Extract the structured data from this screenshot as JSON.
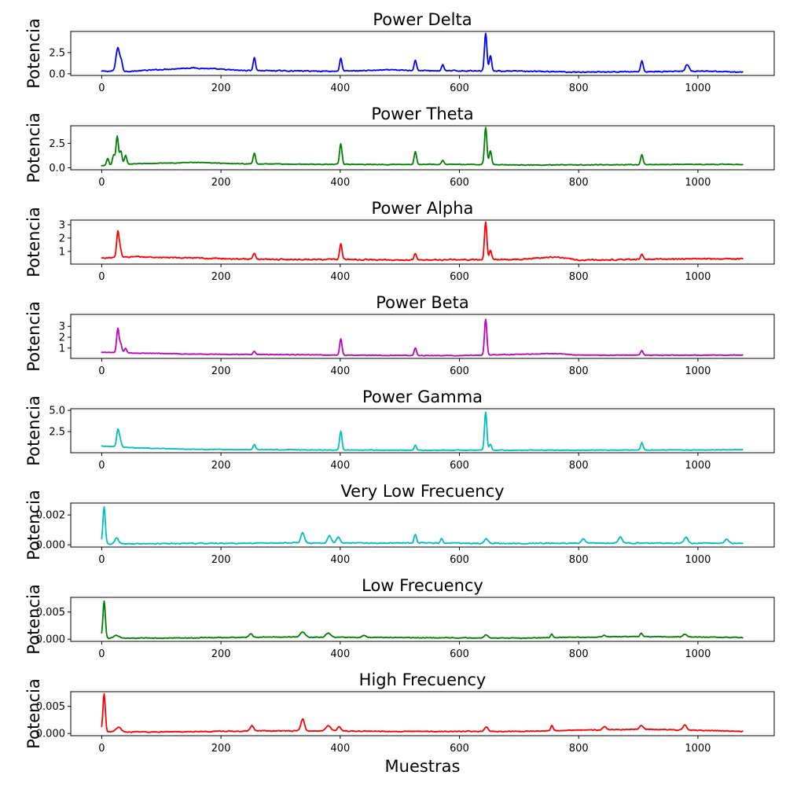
{
  "chart_data": [
    {
      "type": "line",
      "title": "Power Delta",
      "ylabel": "Potencia",
      "xlabel": "",
      "color": "#0000ff",
      "xlim": [
        -52,
        1128
      ],
      "ylim": [
        -0.2,
        5.0
      ],
      "xticks": [
        0,
        200,
        400,
        600,
        800,
        1000
      ],
      "yticks": [
        0.0,
        2.5
      ],
      "ytick_labels": [
        "0.0",
        "2.5"
      ],
      "series": [
        {
          "baseline": [
            [
              0,
              0.3
            ],
            [
              50,
              0.3
            ],
            [
              100,
              0.5
            ],
            [
              150,
              0.7
            ],
            [
              180,
              0.6
            ],
            [
              230,
              0.4
            ],
            [
              300,
              0.35
            ],
            [
              400,
              0.3
            ],
            [
              480,
              0.45
            ],
            [
              560,
              0.35
            ],
            [
              640,
              0.35
            ],
            [
              700,
              0.3
            ],
            [
              800,
              0.2
            ],
            [
              900,
              0.25
            ],
            [
              1000,
              0.3
            ],
            [
              1075,
              0.2
            ]
          ],
          "peaks": [
            [
              27,
              2.8,
              3
            ],
            [
              33,
              1.0,
              2
            ],
            [
              256,
              1.5,
              2
            ],
            [
              401,
              1.5,
              2
            ],
            [
              526,
              1.2,
              2
            ],
            [
              572,
              0.7,
              2
            ],
            [
              644,
              4.5,
              2
            ],
            [
              652,
              1.8,
              2
            ],
            [
              906,
              1.3,
              2
            ],
            [
              982,
              0.8,
              3
            ]
          ],
          "noise": 0.1
        }
      ]
    },
    {
      "type": "line",
      "title": "Power Theta",
      "ylabel": "Potencia",
      "xlabel": "",
      "color": "#008000",
      "xlim": [
        -52,
        1128
      ],
      "ylim": [
        -0.2,
        4.3
      ],
      "xticks": [
        0,
        200,
        400,
        600,
        800,
        1000
      ],
      "yticks": [
        0.0,
        2.5
      ],
      "ytick_labels": [
        "0.0",
        "2.5"
      ],
      "series": [
        {
          "baseline": [
            [
              0,
              0.2
            ],
            [
              50,
              0.4
            ],
            [
              150,
              0.55
            ],
            [
              250,
              0.4
            ],
            [
              400,
              0.35
            ],
            [
              600,
              0.35
            ],
            [
              700,
              0.3
            ],
            [
              800,
              0.3
            ],
            [
              1000,
              0.35
            ],
            [
              1075,
              0.35
            ]
          ],
          "peaks": [
            [
              10,
              0.7,
              2
            ],
            [
              20,
              1.0,
              2
            ],
            [
              26,
              2.9,
              2
            ],
            [
              32,
              1.4,
              2
            ],
            [
              40,
              0.9,
              2
            ],
            [
              256,
              1.1,
              2
            ],
            [
              401,
              2.1,
              2
            ],
            [
              526,
              1.3,
              2
            ],
            [
              572,
              0.4,
              2
            ],
            [
              644,
              3.8,
              2
            ],
            [
              652,
              1.4,
              2
            ],
            [
              906,
              1.0,
              2
            ]
          ],
          "noise": 0.06
        }
      ]
    },
    {
      "type": "line",
      "title": "Power Alpha",
      "ylabel": "Potencia",
      "xlabel": "",
      "color": "#ff0000",
      "xlim": [
        -52,
        1128
      ],
      "ylim": [
        0.05,
        3.35
      ],
      "xticks": [
        0,
        200,
        400,
        600,
        800,
        1000
      ],
      "yticks": [
        1,
        2,
        3
      ],
      "ytick_labels": [
        "1",
        "2",
        "3"
      ],
      "series": [
        {
          "baseline": [
            [
              0,
              0.5
            ],
            [
              50,
              0.6
            ],
            [
              150,
              0.5
            ],
            [
              300,
              0.4
            ],
            [
              400,
              0.4
            ],
            [
              500,
              0.35
            ],
            [
              700,
              0.4
            ],
            [
              760,
              0.6
            ],
            [
              800,
              0.35
            ],
            [
              1000,
              0.45
            ],
            [
              1075,
              0.45
            ]
          ],
          "peaks": [
            [
              27,
              1.9,
              2
            ],
            [
              31,
              0.6,
              2
            ],
            [
              256,
              0.4,
              2
            ],
            [
              401,
              1.2,
              2
            ],
            [
              526,
              0.5,
              2
            ],
            [
              644,
              2.8,
              2
            ],
            [
              652,
              0.7,
              2
            ],
            [
              906,
              0.4,
              2
            ]
          ],
          "noise": 0.08
        }
      ]
    },
    {
      "type": "line",
      "title": "Power Beta",
      "ylabel": "Potencia",
      "xlabel": "",
      "color": "#bf00bf",
      "xlim": [
        -52,
        1128
      ],
      "ylim": [
        0.05,
        4.1
      ],
      "xticks": [
        0,
        200,
        400,
        600,
        800,
        1000
      ],
      "yticks": [
        1,
        2,
        3
      ],
      "ytick_labels": [
        "1",
        "2",
        "3"
      ],
      "series": [
        {
          "baseline": [
            [
              0,
              0.6
            ],
            [
              50,
              0.55
            ],
            [
              150,
              0.45
            ],
            [
              300,
              0.4
            ],
            [
              400,
              0.35
            ],
            [
              600,
              0.3
            ],
            [
              760,
              0.5
            ],
            [
              800,
              0.35
            ],
            [
              1075,
              0.35
            ]
          ],
          "peaks": [
            [
              27,
              2.2,
              2
            ],
            [
              32,
              0.8,
              2
            ],
            [
              40,
              0.4,
              2
            ],
            [
              256,
              0.3,
              2
            ],
            [
              401,
              1.5,
              2
            ],
            [
              526,
              0.7,
              2
            ],
            [
              644,
              3.3,
              2
            ],
            [
              906,
              0.4,
              2
            ]
          ],
          "noise": 0.05
        }
      ]
    },
    {
      "type": "line",
      "title": "Power Gamma",
      "ylabel": "Potencia",
      "xlabel": "",
      "color": "#00bfbf",
      "xlim": [
        -52,
        1128
      ],
      "ylim": [
        0.0,
        5.2
      ],
      "xticks": [
        0,
        200,
        400,
        600,
        800,
        1000
      ],
      "yticks": [
        2.5,
        5.0
      ],
      "ytick_labels": [
        "2.5",
        "5.0"
      ],
      "series": [
        {
          "baseline": [
            [
              0,
              0.8
            ],
            [
              50,
              0.6
            ],
            [
              150,
              0.4
            ],
            [
              300,
              0.35
            ],
            [
              500,
              0.3
            ],
            [
              700,
              0.3
            ],
            [
              800,
              0.3
            ],
            [
              1075,
              0.35
            ]
          ],
          "peaks": [
            [
              27,
              2.0,
              2
            ],
            [
              31,
              0.8,
              2
            ],
            [
              256,
              0.6,
              2
            ],
            [
              401,
              2.2,
              2
            ],
            [
              526,
              0.6,
              2
            ],
            [
              644,
              4.5,
              2
            ],
            [
              652,
              0.7,
              2
            ],
            [
              906,
              0.9,
              2
            ]
          ],
          "noise": 0.06
        }
      ]
    },
    {
      "type": "line",
      "title": "Very Low Frecuency",
      "ylabel": "Potencia",
      "xlabel": "",
      "color": "#00bfbf",
      "xlim": [
        -52,
        1128
      ],
      "ylim": [
        -0.00015,
        0.0028
      ],
      "xticks": [
        0,
        200,
        400,
        600,
        800,
        1000
      ],
      "yticks": [
        0.0,
        0.002
      ],
      "ytick_labels": [
        "0.000",
        "0.002"
      ],
      "series": [
        {
          "baseline": [
            [
              0,
              5e-05
            ],
            [
              100,
              8e-05
            ],
            [
              300,
              0.00012
            ],
            [
              500,
              0.00012
            ],
            [
              700,
              0.0001
            ],
            [
              900,
              0.00012
            ],
            [
              1075,
              0.0001
            ]
          ],
          "peaks": [
            [
              4,
              0.0025,
              2
            ],
            [
              25,
              0.0004,
              3
            ],
            [
              337,
              0.0007,
              3
            ],
            [
              382,
              0.0005,
              3
            ],
            [
              397,
              0.0004,
              3
            ],
            [
              526,
              0.0006,
              2
            ],
            [
              570,
              0.0003,
              2
            ],
            [
              645,
              0.0003,
              3
            ],
            [
              808,
              0.0003,
              3
            ],
            [
              870,
              0.0004,
              3
            ],
            [
              980,
              0.0004,
              3
            ],
            [
              1048,
              0.0003,
              3
            ]
          ],
          "noise": 6e-05
        }
      ]
    },
    {
      "type": "line",
      "title": "Low Frecuency",
      "ylabel": "Potencia",
      "xlabel": "",
      "color": "#008000",
      "xlim": [
        -52,
        1128
      ],
      "ylim": [
        -0.0004,
        0.0077
      ],
      "xticks": [
        0,
        200,
        400,
        600,
        800,
        1000
      ],
      "yticks": [
        0.0,
        0.005
      ],
      "ytick_labels": [
        "0.000",
        "0.005"
      ],
      "series": [
        {
          "baseline": [
            [
              0,
              0.0002
            ],
            [
              100,
              0.0002
            ],
            [
              300,
              0.0004
            ],
            [
              500,
              0.0003
            ],
            [
              700,
              0.0002
            ],
            [
              900,
              0.0005
            ],
            [
              1075,
              0.0003
            ]
          ],
          "peaks": [
            [
              4,
              0.0068,
              2
            ],
            [
              25,
              0.0005,
              4
            ],
            [
              250,
              0.0006,
              3
            ],
            [
              337,
              0.001,
              4
            ],
            [
              380,
              0.0008,
              4
            ],
            [
              440,
              0.0004,
              3
            ],
            [
              645,
              0.0006,
              3
            ],
            [
              755,
              0.0006,
              2
            ],
            [
              843,
              0.0004,
              2
            ],
            [
              905,
              0.0006,
              2
            ],
            [
              978,
              0.0005,
              3
            ]
          ],
          "noise": 0.00012
        }
      ]
    },
    {
      "type": "line",
      "title": "High Frecuency",
      "ylabel": "Potencia",
      "xlabel": "Muestras",
      "color": "#ff0000",
      "xlim": [
        -52,
        1128
      ],
      "ylim": [
        -0.0004,
        0.0077
      ],
      "xticks": [
        0,
        200,
        400,
        600,
        800,
        1000
      ],
      "yticks": [
        0.0,
        0.005
      ],
      "ytick_labels": [
        "0.000",
        "0.005"
      ],
      "series": [
        {
          "baseline": [
            [
              0,
              0.0003
            ],
            [
              100,
              0.0003
            ],
            [
              300,
              0.0005
            ],
            [
              500,
              0.0004
            ],
            [
              700,
              0.0004
            ],
            [
              900,
              0.0008
            ],
            [
              1075,
              0.0004
            ]
          ],
          "peaks": [
            [
              4,
              0.007,
              2
            ],
            [
              28,
              0.0009,
              4
            ],
            [
              252,
              0.001,
              3
            ],
            [
              337,
              0.0022,
              3
            ],
            [
              380,
              0.001,
              4
            ],
            [
              398,
              0.0008,
              3
            ],
            [
              645,
              0.0008,
              3
            ],
            [
              755,
              0.0009,
              2
            ],
            [
              843,
              0.0006,
              3
            ],
            [
              905,
              0.0007,
              3
            ],
            [
              978,
              0.0009,
              3
            ]
          ],
          "noise": 0.00014
        }
      ]
    }
  ]
}
